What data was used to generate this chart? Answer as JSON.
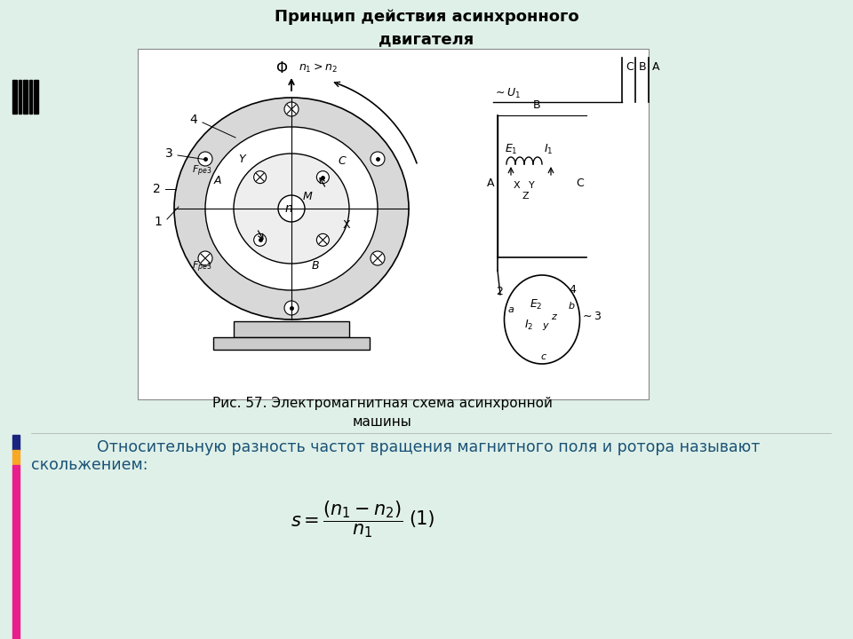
{
  "title": "Принцип действия асинхронного\nдвигателя",
  "title_fontsize": 13,
  "title_color": "#000000",
  "bg_color": "#dff0e8",
  "caption": "Рис. 57. Электромагнитная схема асинхронной\nмашины",
  "caption_fontsize": 11,
  "paragraph_text1": "        Относительную разность частот вращения магнитного поля и ротора называют",
  "paragraph_text2": "скольжением:",
  "paragraph_color": "#1a5276",
  "paragraph_fontsize": 12.5,
  "formula_fontsize": 15,
  "formula_color": "#000000",
  "left_bar_color_dark": "#1a237e",
  "left_bar_color_gold": "#f9a825",
  "left_bar_color_pink": "#e91e8c",
  "white_box_bg": "#ffffff",
  "diagram_bg": "#f0f0f0"
}
